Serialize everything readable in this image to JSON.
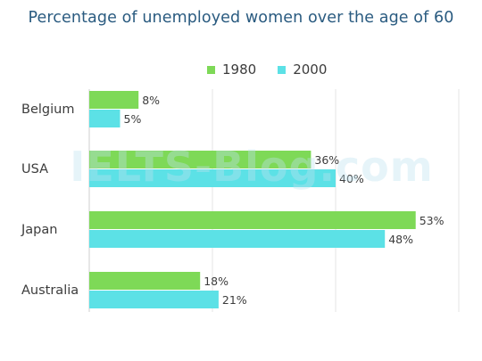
{
  "chart_data": {
    "type": "bar",
    "orientation": "horizontal",
    "title": "Percentage of unemployed women over the age of 60",
    "categories": [
      "Belgium",
      "USA",
      "Japan",
      "Australia"
    ],
    "series": [
      {
        "name": "1980",
        "color": "#7ed957",
        "values": [
          8,
          36,
          53,
          18
        ],
        "labels": [
          "8%",
          "36%",
          "53%",
          "18%"
        ]
      },
      {
        "name": "2000",
        "color": "#5ce1e6",
        "values": [
          5,
          40,
          48,
          21
        ],
        "labels": [
          "5%",
          "40%",
          "48%",
          "21%"
        ]
      }
    ],
    "xlim": [
      0,
      60
    ],
    "grid": true,
    "legend_position": "top"
  },
  "watermark": "IELTS-Blog.com",
  "colors": {
    "title": "#2a5b80",
    "gridline": "#e6e6e6",
    "axis": "#cfcfcf",
    "text": "#3c3c3c"
  }
}
